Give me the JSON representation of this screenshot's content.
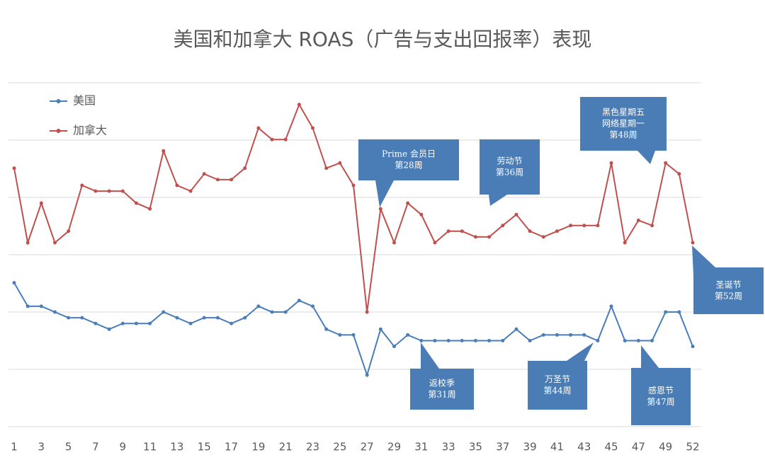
{
  "chart_data": {
    "type": "line",
    "title": "美国和加拿大 ROAS（广告与支出回报率）表现",
    "categories": [
      1,
      null,
      3,
      null,
      5,
      null,
      7,
      null,
      9,
      null,
      11,
      null,
      13,
      null,
      15,
      null,
      17,
      null,
      19,
      null,
      21,
      null,
      23,
      null,
      25,
      null,
      27,
      null,
      29,
      null,
      31,
      null,
      33,
      null,
      35,
      null,
      37,
      null,
      39,
      null,
      41,
      null,
      43,
      null,
      45,
      null,
      47,
      null,
      49,
      null,
      52
    ],
    "series": [
      {
        "name": "美国",
        "color": "#4a7ebb",
        "values": [
          2.51,
          2.1,
          2.1,
          2.0,
          1.9,
          1.9,
          1.8,
          1.7,
          1.8,
          1.8,
          1.8,
          2.0,
          1.9,
          1.8,
          1.9,
          1.9,
          1.8,
          1.9,
          2.1,
          2.0,
          2.0,
          2.2,
          2.1,
          1.7,
          1.6,
          1.6,
          0.9,
          1.7,
          1.4,
          1.6,
          1.5,
          1.5,
          1.5,
          1.5,
          1.5,
          1.5,
          1.5,
          1.7,
          1.5,
          1.6,
          1.6,
          1.6,
          1.6,
          1.5,
          2.1,
          1.5,
          1.5,
          1.5,
          2.0,
          2.0,
          1.4
        ]
      },
      {
        "name": "加拿大",
        "color": "#c0504d",
        "values": [
          4.51,
          3.21,
          3.9,
          3.21,
          3.41,
          4.21,
          4.11,
          4.11,
          4.11,
          3.9,
          3.8,
          4.81,
          4.21,
          4.11,
          4.41,
          4.31,
          4.31,
          4.51,
          5.21,
          5.01,
          5.01,
          5.62,
          5.21,
          4.51,
          4.6,
          4.21,
          2.0,
          3.8,
          3.21,
          3.9,
          3.7,
          3.21,
          3.41,
          3.41,
          3.31,
          3.31,
          3.51,
          3.7,
          3.41,
          3.31,
          3.41,
          3.51,
          3.51,
          3.51,
          4.6,
          3.21,
          3.6,
          3.51,
          4.6,
          4.41,
          3.21
        ]
      }
    ],
    "ylim": [
      0,
      6
    ],
    "yticks": [
      0,
      1,
      2,
      3,
      4,
      5,
      6
    ],
    "grid": true,
    "legend": "top-left",
    "annotations": [
      {
        "lines": [
          "Prime 会员日",
          "第28周"
        ]
      },
      {
        "lines": [
          "劳动节",
          "第36周"
        ]
      },
      {
        "lines": [
          "黑色星期五",
          "网络星期一",
          "第48周"
        ]
      },
      {
        "lines": [
          "圣诞节",
          "第52周"
        ]
      },
      {
        "lines": [
          "返校季",
          "第31周"
        ]
      },
      {
        "lines": [
          "万圣节",
          "第44周"
        ]
      },
      {
        "lines": [
          "感恩节",
          "第47周"
        ]
      }
    ]
  }
}
